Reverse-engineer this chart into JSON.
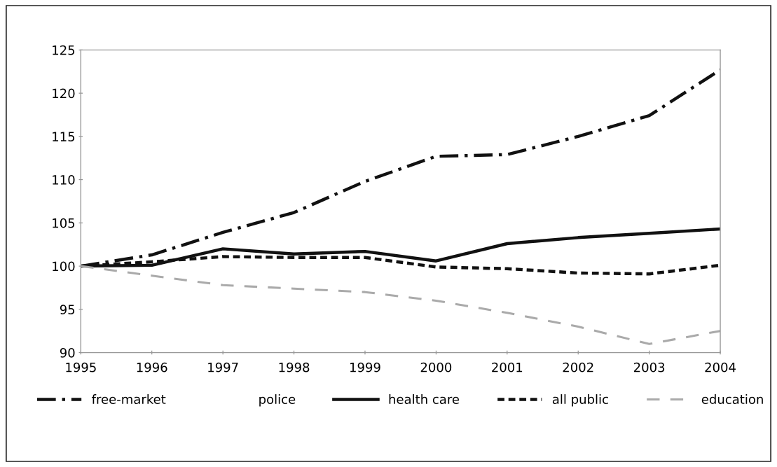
{
  "chart_data": {
    "type": "line",
    "x": [
      1995,
      1996,
      1997,
      1998,
      1999,
      2000,
      2001,
      2002,
      2003,
      2004
    ],
    "series": [
      {
        "name": "free-market",
        "color": "#111111",
        "line_style": "dashdot",
        "values": [
          100,
          101.3,
          103.9,
          106.2,
          109.8,
          112.7,
          112.9,
          115.0,
          117.4,
          122.7
        ]
      },
      {
        "name": "police",
        "values": [
          null,
          null,
          null,
          null,
          null,
          null,
          null,
          null,
          null,
          null
        ]
      },
      {
        "name": "health care",
        "color": "#111111",
        "line_style": "solid",
        "values": [
          100,
          100.1,
          102.0,
          101.4,
          101.7,
          100.6,
          102.6,
          103.3,
          103.8,
          104.3
        ]
      },
      {
        "name": "all public",
        "color": "#111111",
        "line_style": "dotted",
        "values": [
          100,
          100.5,
          101.1,
          101.0,
          101.0,
          99.9,
          99.7,
          99.2,
          99.1,
          100.1
        ]
      },
      {
        "name": "education",
        "color": "#aaaaaa",
        "line_style": "dashed",
        "values": [
          100,
          98.9,
          97.8,
          97.4,
          97.0,
          96.0,
          94.6,
          93.0,
          91.0,
          92.5
        ]
      }
    ],
    "xlim": [
      1995,
      2004
    ],
    "xticks": [
      1995,
      1996,
      1997,
      1998,
      1999,
      2000,
      2001,
      2002,
      2003,
      2004
    ],
    "ylim": [
      90,
      125
    ],
    "yticks": [
      90,
      95,
      100,
      105,
      110,
      115,
      120,
      125
    ],
    "grid": false,
    "legend": "bottom",
    "marker": "none"
  }
}
